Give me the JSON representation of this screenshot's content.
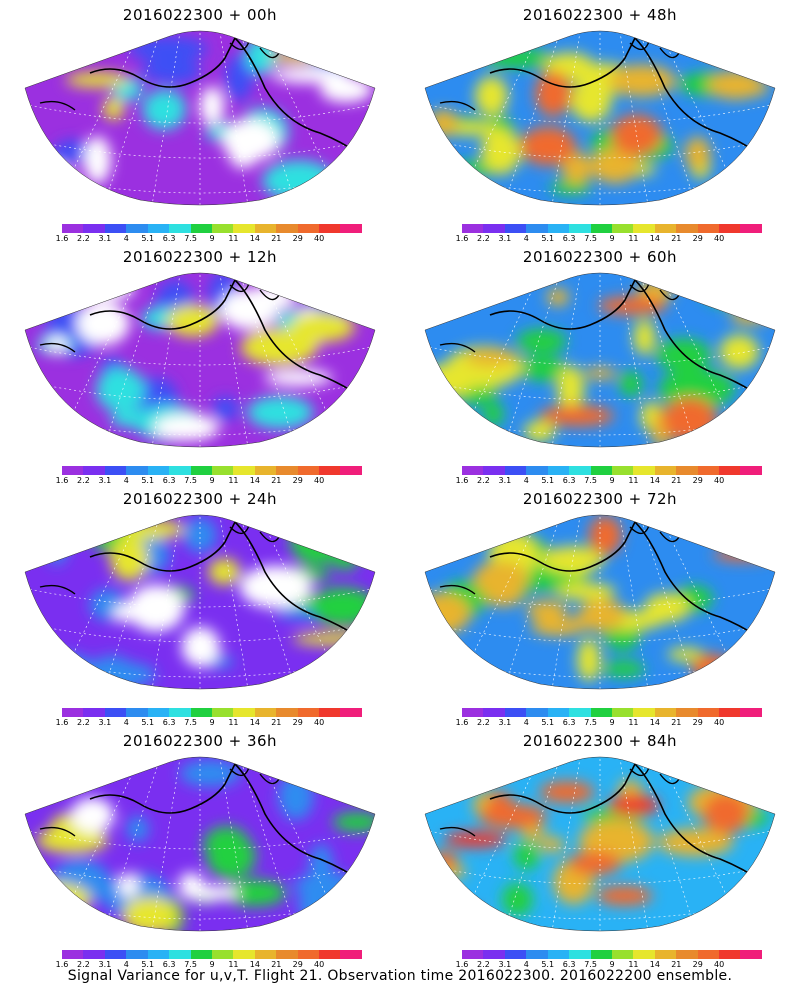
{
  "panels": [
    {
      "title": "2016022300 + 00h",
      "style": "early"
    },
    {
      "title": "2016022300 + 48h",
      "style": "warm"
    },
    {
      "title": "2016022300 + 12h",
      "style": "early"
    },
    {
      "title": "2016022300 + 60h",
      "style": "warm"
    },
    {
      "title": "2016022300 + 24h",
      "style": "mid"
    },
    {
      "title": "2016022300 + 72h",
      "style": "warm"
    },
    {
      "title": "2016022300 + 36h",
      "style": "mid"
    },
    {
      "title": "2016022300 + 84h",
      "style": "hot"
    }
  ],
  "colorbar": {
    "colors": [
      "#9b30e0",
      "#7a2ff0",
      "#3c4ff5",
      "#2d8cf0",
      "#29b2f5",
      "#2ee0e0",
      "#20d040",
      "#98e02e",
      "#e6e62d",
      "#e8b42d",
      "#e88a2d",
      "#f06a2d",
      "#f0382d",
      "#f01e7a"
    ],
    "labels": [
      "1.6",
      "2.2",
      "3.1",
      "4",
      "5.1",
      "6.3",
      "7.5",
      "9",
      "11",
      "14",
      "21",
      "29",
      "40"
    ]
  },
  "footer": "Signal Variance for u,v,T. Flight 21. Observation time 2016022300. 2016022200 ensemble."
}
